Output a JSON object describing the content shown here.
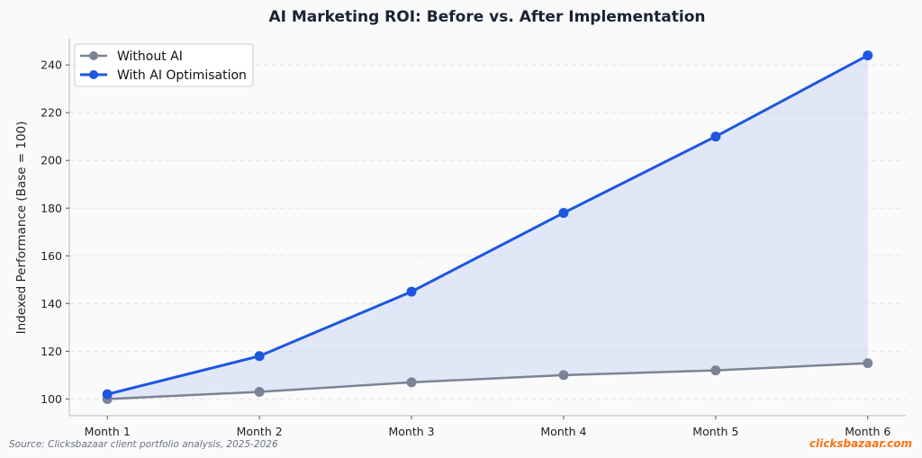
{
  "chart_data": {
    "type": "line",
    "title": "AI Marketing ROI: Before vs. After Implementation",
    "xlabel": "",
    "ylabel": "Indexed Performance (Base = 100)",
    "categories": [
      "Month 1",
      "Month 2",
      "Month 3",
      "Month 4",
      "Month 5",
      "Month 6"
    ],
    "ylim": [
      93,
      251
    ],
    "yticks": [
      100,
      120,
      140,
      160,
      180,
      200,
      220,
      240
    ],
    "grid": true,
    "legend_position": "top-left",
    "fill_between": true,
    "series": [
      {
        "name": "Without AI",
        "values": [
          100,
          103,
          107,
          110,
          112,
          115
        ],
        "color": "#7b8494"
      },
      {
        "name": "With AI Optimisation",
        "values": [
          102,
          118,
          145,
          178,
          210,
          244
        ],
        "color": "#1d56e0"
      }
    ],
    "fill_color": "#c7d4f3",
    "source": "Source: Clicksbazaar client portfolio analysis, 2025-2026",
    "brand": "clicksbazaar.com"
  }
}
